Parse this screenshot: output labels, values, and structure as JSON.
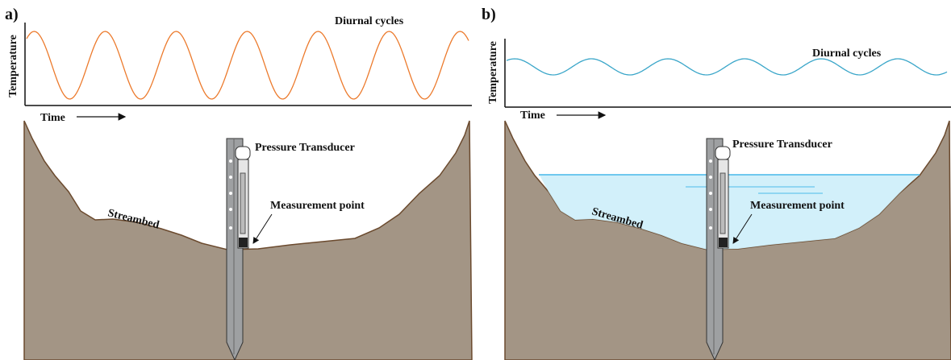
{
  "panels": [
    {
      "label": "a)",
      "y_axis_label": "Temperature",
      "x_axis_label": "Time",
      "annotation": "Diurnal cycles",
      "sensor_label": "Pressure Transducer",
      "point_label": "Measurement point",
      "bed_label": "Streambed"
    },
    {
      "label": "b)",
      "y_axis_label": "Temperature",
      "x_axis_label": "Time",
      "annotation": "Diurnal cycles",
      "sensor_label": "Pressure Transducer",
      "point_label": "Measurement point",
      "bed_label": "Streambed"
    }
  ]
}
